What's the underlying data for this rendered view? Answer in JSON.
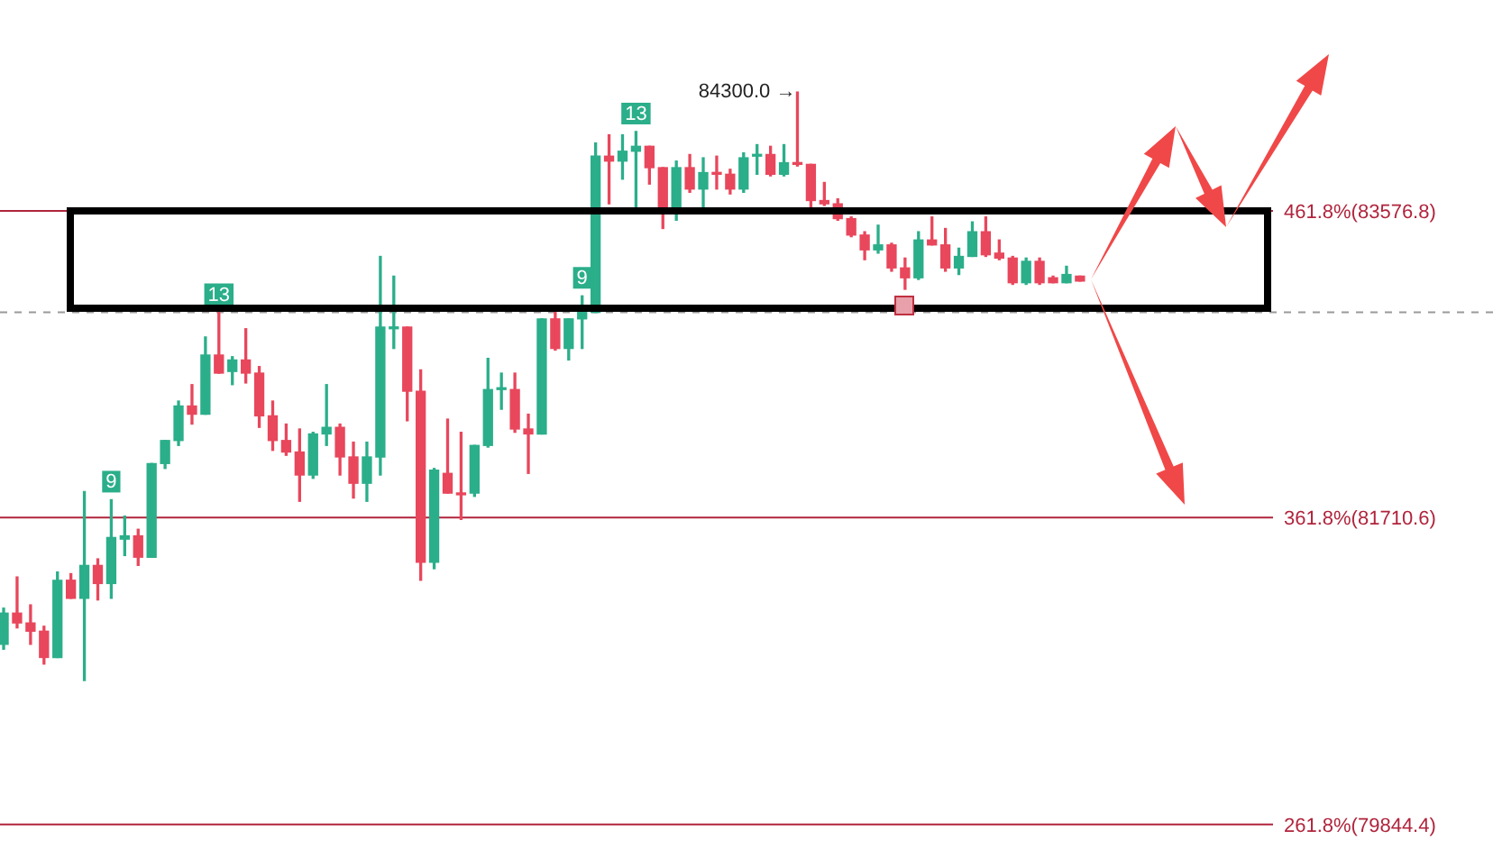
{
  "chart_data": {
    "type": "candlestick",
    "categories": [
      null,
      null,
      null,
      null,
      null,
      null,
      null,
      null,
      null,
      null,
      null,
      null,
      null,
      null,
      null,
      null,
      null,
      null,
      null,
      null,
      null,
      null,
      null,
      null,
      null,
      null,
      null,
      null,
      null,
      null,
      null,
      null,
      null,
      null,
      null,
      null,
      null,
      null,
      null,
      null,
      null,
      null,
      null,
      null,
      null,
      null,
      null,
      null,
      null,
      null,
      null,
      null,
      null,
      null,
      null,
      null,
      null,
      null,
      null,
      null,
      null,
      null,
      null,
      null,
      null,
      null,
      null,
      null,
      null,
      null,
      null,
      null,
      null,
      null,
      null,
      null,
      null,
      null,
      null,
      null,
      null
    ],
    "ohlc": [
      [
        80940,
        81160,
        80910,
        81130
      ],
      [
        81130,
        81350,
        81040,
        81070
      ],
      [
        81070,
        81180,
        80940,
        81020
      ],
      [
        81020,
        81050,
        80820,
        80860
      ],
      [
        80860,
        81380,
        80860,
        81330
      ],
      [
        81330,
        81370,
        81220,
        81220
      ],
      [
        81220,
        81870,
        80720,
        81420
      ],
      [
        81420,
        81460,
        81210,
        81310
      ],
      [
        81310,
        81820,
        81220,
        81590
      ],
      [
        81580,
        81720,
        81480,
        81600
      ],
      [
        81600,
        81640,
        81420,
        81470
      ],
      [
        81470,
        82040,
        81470,
        82040
      ],
      [
        82040,
        82180,
        82010,
        82180
      ],
      [
        82180,
        82420,
        82150,
        82390
      ],
      [
        82390,
        82520,
        82280,
        82340
      ],
      [
        82340,
        82810,
        82340,
        82700
      ],
      [
        82700,
        82960,
        82590,
        82590
      ],
      [
        82600,
        82690,
        82520,
        82670
      ],
      [
        82670,
        82860,
        82530,
        82590
      ],
      [
        82590,
        82630,
        82260,
        82330
      ],
      [
        82330,
        82420,
        82120,
        82180
      ],
      [
        82180,
        82280,
        82090,
        82110
      ],
      [
        82110,
        82250,
        81810,
        81970
      ],
      [
        81970,
        82230,
        81950,
        82220
      ],
      [
        82220,
        82520,
        82150,
        82260
      ],
      [
        82260,
        82280,
        81970,
        82080
      ],
      [
        82080,
        82170,
        81830,
        81920
      ],
      [
        81920,
        82170,
        81810,
        82080
      ],
      [
        82080,
        83300,
        81970,
        82870
      ],
      [
        82860,
        83180,
        82740,
        82870
      ],
      [
        82870,
        82870,
        82300,
        82480
      ],
      [
        82480,
        82610,
        81330,
        81440
      ],
      [
        81440,
        82010,
        81400,
        82000
      ],
      [
        81980,
        82310,
        81860,
        81860
      ],
      [
        81860,
        82230,
        81700,
        81850
      ],
      [
        81860,
        82150,
        81840,
        82150
      ],
      [
        82150,
        82680,
        82140,
        82490
      ],
      [
        82490,
        82590,
        82370,
        82500
      ],
      [
        82490,
        82590,
        82230,
        82250
      ],
      [
        82250,
        82340,
        81980,
        82220
      ],
      [
        82220,
        82920,
        82220,
        82920
      ],
      [
        82920,
        82960,
        82730,
        82740
      ],
      [
        82740,
        82920,
        82670,
        82920
      ],
      [
        82920,
        83060,
        82740,
        82960
      ],
      [
        82960,
        83990,
        82960,
        83910
      ],
      [
        83910,
        84040,
        83620,
        83880
      ],
      [
        83880,
        84040,
        83770,
        83940
      ],
      [
        83940,
        84060,
        83600,
        83970
      ],
      [
        83970,
        83970,
        83740,
        83840
      ],
      [
        83840,
        83840,
        83470,
        83580
      ],
      [
        83580,
        83880,
        83520,
        83840
      ],
      [
        83840,
        83920,
        83690,
        83710
      ],
      [
        83710,
        83900,
        83600,
        83810
      ],
      [
        83810,
        83910,
        83710,
        83800
      ],
      [
        83800,
        83830,
        83680,
        83710
      ],
      [
        83710,
        83930,
        83690,
        83900
      ],
      [
        83910,
        83980,
        83800,
        83920
      ],
      [
        83920,
        83970,
        83790,
        83800
      ],
      [
        83800,
        83980,
        83790,
        83870
      ],
      [
        83870,
        84300,
        83850,
        83860
      ],
      [
        83860,
        83860,
        83600,
        83640
      ],
      [
        83640,
        83750,
        83610,
        83620
      ],
      [
        83620,
        83650,
        83520,
        83530
      ],
      [
        83530,
        83540,
        83420,
        83430
      ],
      [
        83430,
        83450,
        83280,
        83340
      ],
      [
        83340,
        83490,
        83320,
        83370
      ],
      [
        83370,
        83380,
        83210,
        83230
      ],
      [
        83230,
        83290,
        83100,
        83170
      ],
      [
        83170,
        83450,
        83160,
        83400
      ],
      [
        83400,
        83540,
        83370,
        83370
      ],
      [
        83370,
        83470,
        83210,
        83230
      ],
      [
        83230,
        83350,
        83190,
        83300
      ],
      [
        83300,
        83510,
        83300,
        83450
      ],
      [
        83450,
        83540,
        83300,
        83310
      ],
      [
        83320,
        83400,
        83280,
        83290
      ],
      [
        83290,
        83300,
        83130,
        83140
      ],
      [
        83140,
        83290,
        83130,
        83270
      ],
      [
        83270,
        83290,
        83130,
        83140
      ],
      [
        83170,
        83180,
        83140,
        83140
      ],
      [
        83140,
        83240,
        83140,
        83190
      ],
      [
        83180,
        83180,
        83150,
        83150
      ]
    ],
    "ylim": [
      79640,
      84860
    ],
    "tick_labels": false,
    "legend": false,
    "ref_lines": [
      {
        "axis": "y",
        "value": 83576.8,
        "label": "461.8%(83576.8)",
        "color": "#b0243c"
      },
      {
        "axis": "y",
        "value": 81710.6,
        "label": "361.8%(81710.6)",
        "color": "#b0243c"
      },
      {
        "axis": "y",
        "value": 79844.4,
        "label": "261.8%(79844.4)",
        "color": "#b0243c"
      },
      {
        "axis": "y",
        "value": 82960,
        "color": "#9a9a9a",
        "line_style": "dashed"
      }
    ],
    "annotations": [
      "84300.0 →",
      {
        "text": "9",
        "y": 81820
      },
      {
        "text": "13",
        "y": 82960
      },
      {
        "text": "9",
        "y": 83060
      },
      {
        "text": "13",
        "y": 84060
      }
    ]
  }
}
